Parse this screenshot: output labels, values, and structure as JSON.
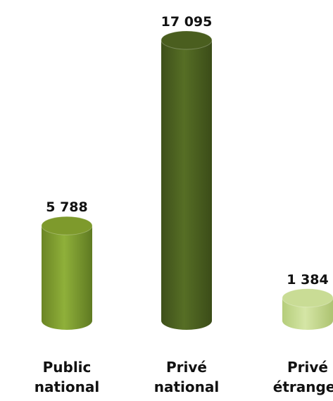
{
  "chart_data": {
    "type": "bar",
    "style": "3d-cylinder",
    "categories": [
      [
        "Public",
        "national"
      ],
      [
        "Privé",
        "national"
      ],
      [
        "Privé",
        "étranger"
      ]
    ],
    "values": [
      5788,
      17095,
      1384
    ],
    "value_labels": [
      "5 788",
      "17 095",
      "1 384"
    ],
    "colors": [
      "#7e9a2c",
      "#4a5e1f",
      "#c9dc95"
    ],
    "ylim": [
      0,
      17095
    ],
    "grid": false,
    "legend": "none"
  }
}
